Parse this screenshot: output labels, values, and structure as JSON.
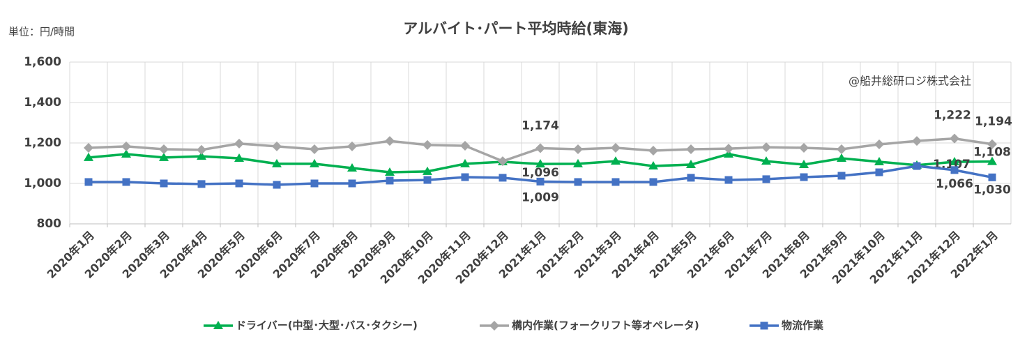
{
  "chart_data": {
    "type": "line",
    "title": "アルバイト･パート平均時給(東海)",
    "unit_label": "単位：円/時間",
    "watermark": "@船井総研ロジ株式会社",
    "categories": [
      "2020年1月",
      "2020年2月",
      "2020年3月",
      "2020年4月",
      "2020年5月",
      "2020年6月",
      "2020年7月",
      "2020年8月",
      "2020年9月",
      "2020年10月",
      "2020年11月",
      "2020年12月",
      "2021年1月",
      "2021年2月",
      "2021年3月",
      "2021年4月",
      "2021年5月",
      "2021年6月",
      "2021年7月",
      "2021年8月",
      "2021年9月",
      "2021年10月",
      "2021年11月",
      "2021年12月",
      "2022年1月"
    ],
    "ylim": [
      800,
      1600
    ],
    "yticks": [
      {
        "value": 800,
        "label": "800"
      },
      {
        "value": 1000,
        "label": "1,000"
      },
      {
        "value": 1200,
        "label": "1,200"
      },
      {
        "value": 1400,
        "label": "1,400"
      },
      {
        "value": 1600,
        "label": "1,600"
      }
    ],
    "grid": true,
    "series": [
      {
        "name": "ドライバー(中型･大型･バス･タクシー)",
        "color": "#00b050",
        "marker": "triangle",
        "values": [
          1128,
          1145,
          1128,
          1134,
          1124,
          1097,
          1097,
          1076,
          1055,
          1059,
          1097,
          1107,
          1096,
          1097,
          1110,
          1086,
          1093,
          1145,
          1110,
          1093,
          1124,
          1107,
          1090,
          1107,
          1108
        ],
        "value_labels": [
          null,
          null,
          null,
          null,
          null,
          null,
          null,
          null,
          null,
          null,
          null,
          null,
          "1,096",
          null,
          null,
          null,
          null,
          null,
          null,
          null,
          null,
          null,
          null,
          "1,107",
          "1,108"
        ]
      },
      {
        "name": "構内作業(フォークリフト等オペレータ)",
        "color": "#a5a5a5",
        "marker": "diamond",
        "values": [
          1176,
          1183,
          1169,
          1166,
          1197,
          1183,
          1169,
          1183,
          1210,
          1190,
          1186,
          1110,
          1174,
          1169,
          1176,
          1162,
          1169,
          1172,
          1179,
          1176,
          1169,
          1193,
          1210,
          1222,
          1194
        ],
        "value_labels": [
          null,
          null,
          null,
          null,
          null,
          null,
          null,
          null,
          null,
          null,
          null,
          null,
          "1,174",
          null,
          null,
          null,
          null,
          null,
          null,
          null,
          null,
          null,
          null,
          "1,222",
          "1,194"
        ]
      },
      {
        "name": "物流作業",
        "color": "#4472c4",
        "marker": "square",
        "values": [
          1007,
          1007,
          1000,
          997,
          1000,
          993,
          1000,
          1000,
          1014,
          1017,
          1031,
          1028,
          1009,
          1007,
          1007,
          1007,
          1028,
          1017,
          1021,
          1031,
          1038,
          1055,
          1086,
          1066,
          1030
        ],
        "value_labels": [
          null,
          null,
          null,
          null,
          null,
          null,
          null,
          null,
          null,
          null,
          null,
          null,
          "1,009",
          null,
          null,
          null,
          null,
          null,
          null,
          null,
          null,
          null,
          null,
          "1,066",
          "1,030"
        ]
      }
    ]
  }
}
